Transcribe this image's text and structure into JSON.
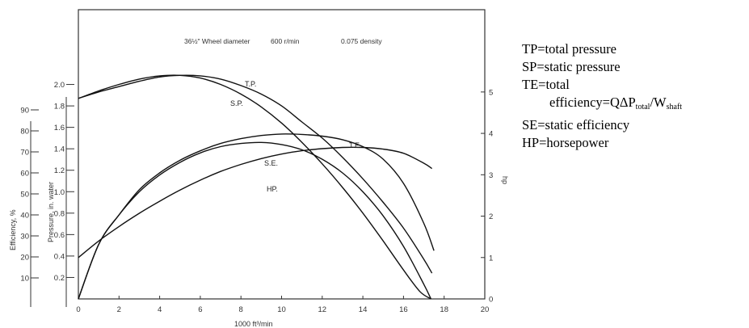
{
  "chart_data": {
    "type": "line",
    "header": {
      "wheel": "36½\" Wheel diameter",
      "speed": "600 r/min",
      "density": "0.075 density"
    },
    "xlabel": "1000 ft³/min",
    "xlim": [
      0,
      20
    ],
    "x_ticks": [
      "0",
      "2",
      "4",
      "6",
      "8",
      "10",
      "12",
      "14",
      "16",
      "18",
      "20"
    ],
    "ylabel_efficiency": "Efficiency, %",
    "efficiency_ticks": [
      "10",
      "20",
      "30",
      "40",
      "50",
      "60",
      "70",
      "80",
      "90"
    ],
    "ylabel_pressure": "Pressure, in. water",
    "pressure_lim": [
      0,
      2.2
    ],
    "pressure_ticks": [
      "0.2",
      "0.4",
      "0.6",
      "0.8",
      "1.0",
      "1.2",
      "1.4",
      "1.6",
      "1.8",
      "2.0"
    ],
    "ylabel_hp": "hp",
    "hp_lim": [
      0,
      5.7
    ],
    "hp_ticks": [
      "0",
      "1",
      "2",
      "3",
      "4",
      "5"
    ],
    "series": [
      {
        "name": "T.P.",
        "axis": "pressure",
        "x": [
          0,
          1,
          2,
          3,
          4,
          5,
          6,
          7,
          8,
          9,
          10,
          11,
          12,
          13,
          14,
          15,
          16,
          17,
          17.4
        ],
        "y": [
          1.87,
          1.93,
          1.98,
          2.03,
          2.07,
          2.085,
          2.08,
          2.05,
          1.99,
          1.91,
          1.8,
          1.65,
          1.5,
          1.32,
          1.12,
          0.9,
          0.66,
          0.37,
          0.24
        ]
      },
      {
        "name": "S.P.",
        "axis": "pressure",
        "x": [
          0,
          1,
          2,
          3,
          4,
          5,
          6,
          7,
          8,
          9,
          10,
          11,
          12,
          13,
          14,
          15,
          16,
          16.8,
          17.35
        ],
        "y": [
          1.87,
          1.94,
          2.0,
          2.05,
          2.08,
          2.085,
          2.06,
          2.0,
          1.91,
          1.79,
          1.64,
          1.46,
          1.26,
          1.04,
          0.8,
          0.54,
          0.27,
          0.07,
          0.0
        ]
      },
      {
        "name": "T.E.",
        "axis": "efficiency",
        "x": [
          0,
          1,
          2,
          3,
          4,
          5,
          6,
          7,
          8,
          9,
          10,
          11,
          12,
          13,
          14,
          15,
          16,
          17,
          17.5
        ],
        "y": [
          0,
          26,
          40,
          52,
          60,
          66,
          70.5,
          74,
          76.3,
          77.8,
          78.5,
          78.3,
          77.5,
          75.8,
          72.5,
          66.5,
          55,
          36,
          23
        ]
      },
      {
        "name": "S.E.",
        "axis": "efficiency",
        "x": [
          0,
          1,
          2,
          3,
          4,
          5,
          6,
          7,
          8,
          9,
          10,
          11,
          12,
          13,
          14,
          15,
          16,
          17,
          17.35
        ],
        "y": [
          0,
          26,
          40,
          51,
          59,
          65,
          69.5,
          72.5,
          74,
          74.5,
          73.5,
          71,
          66.5,
          60,
          51,
          39.5,
          25,
          7,
          0
        ]
      },
      {
        "name": "HP.",
        "axis": "hp",
        "x": [
          0,
          1,
          2,
          3,
          4,
          5,
          6,
          7,
          8,
          9,
          10,
          11,
          12,
          13,
          14,
          15,
          16,
          17,
          17.4
        ],
        "y": [
          1.0,
          1.4,
          1.75,
          2.07,
          2.36,
          2.63,
          2.87,
          3.08,
          3.25,
          3.39,
          3.5,
          3.58,
          3.63,
          3.66,
          3.66,
          3.62,
          3.52,
          3.28,
          3.15
        ]
      }
    ]
  },
  "legend": {
    "line1": "TP=total pressure",
    "line2": "SP=static pressure",
    "line3": "TE=total",
    "line4_prefix": "efficiency=QΔP",
    "line4_sub1": "total",
    "line4_mid": "/W",
    "line4_sub2": "shaft",
    "line5": "SE=static efficiency",
    "line6": "HP=horsepower"
  }
}
